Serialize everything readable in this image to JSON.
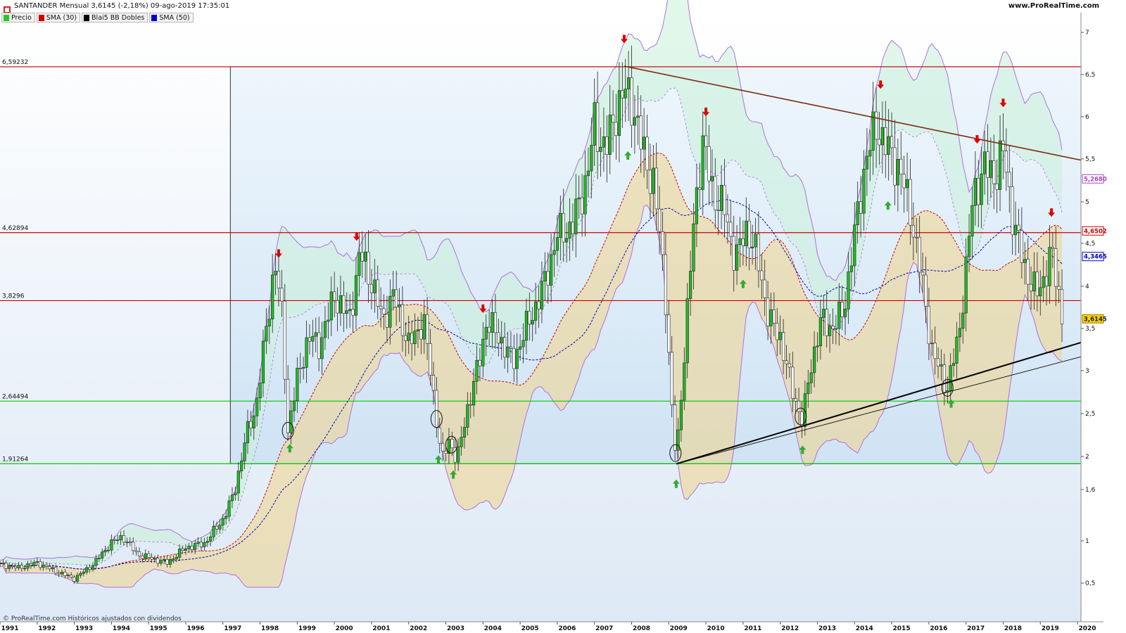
{
  "header": {
    "title": "SANTANDER Mensual 3,6145 (-2,18%) 09-ago-2019 17:35:01",
    "site": "www.ProRealTime.com"
  },
  "legend": [
    {
      "label": "Precio",
      "color": "#22cc22"
    },
    {
      "label": "SMA (30)",
      "color": "#cc0000"
    },
    {
      "label": "Blai5 BB Dobles",
      "color": "#000000"
    },
    {
      "label": "SMA (50)",
      "color": "#0000cc"
    }
  ],
  "footer": {
    "text": "© ProRealTime.com Históricos ajustados con dividendos"
  },
  "colors": {
    "up": "#22bb22",
    "down": "#ffffff",
    "sma30": "#cc0000",
    "sma50": "#0000aa",
    "bands": "#b070e0",
    "resistance": "#cc0000",
    "support": "#00cc00",
    "trend_down": "#7a2a10",
    "trend_up": "#000000",
    "arrow_down": "#dd0000",
    "arrow_up": "#33aa33"
  },
  "chart_data": {
    "type": "candlestick",
    "x_ticks": [
      "1991",
      "1992",
      "1993",
      "1994",
      "1995",
      "1996",
      "1997",
      "1998",
      "1999",
      "2000",
      "2001",
      "2002",
      "2003",
      "2004",
      "2005",
      "2006",
      "2007",
      "2008",
      "2009",
      "2010",
      "2011",
      "2012",
      "2013",
      "2014",
      "2015",
      "2016",
      "2017",
      "2018",
      "2019",
      "2020"
    ],
    "y_ticks": [
      {
        "value": 0.5,
        "label": "0,5"
      },
      {
        "value": 1,
        "label": "1"
      },
      {
        "value": 1.6,
        "label": "1,6"
      },
      {
        "value": 2,
        "label": "2"
      },
      {
        "value": 2.5,
        "label": "2,5"
      },
      {
        "value": 3,
        "label": "3"
      },
      {
        "value": 3.5,
        "label": "3,5"
      },
      {
        "value": 4,
        "label": "4"
      },
      {
        "value": 4.5,
        "label": "4,5"
      },
      {
        "value": 5,
        "label": "5"
      },
      {
        "value": 5.5,
        "label": "5,5"
      },
      {
        "value": 6,
        "label": "6"
      },
      {
        "value": 6.5,
        "label": "6,5"
      },
      {
        "value": 7,
        "label": "7"
      }
    ],
    "levels": [
      {
        "value": 6.59232,
        "label": "6,59232",
        "kind": "resistance"
      },
      {
        "value": 4.62894,
        "label": "4,62894",
        "kind": "resistance"
      },
      {
        "value": 3.8296,
        "label": "3,8296",
        "kind": "resistance"
      },
      {
        "value": 2.64494,
        "label": "2,64494",
        "kind": "support"
      },
      {
        "value": 1.91264,
        "label": "1,91264",
        "kind": "support"
      }
    ],
    "price_tags": [
      {
        "value": 5.268,
        "label": "5,2680",
        "color": "#aa44cc"
      },
      {
        "value": 4.6502,
        "label": "4,6502",
        "color": "#cc0000"
      },
      {
        "value": 4.3465,
        "label": "4,3465",
        "color": "#0000cc"
      },
      {
        "value": 3.6145,
        "label": "3,6145",
        "color": "#aa7700",
        "filled": true
      }
    ],
    "close_path": [
      [
        1991.0,
        0.72
      ],
      [
        1991.5,
        0.68
      ],
      [
        1992.0,
        0.74
      ],
      [
        1992.5,
        0.64
      ],
      [
        1993.0,
        0.55
      ],
      [
        1993.5,
        0.72
      ],
      [
        1994.0,
        0.98
      ],
      [
        1994.3,
        1.05
      ],
      [
        1994.7,
        0.84
      ],
      [
        1995.0,
        0.8
      ],
      [
        1995.5,
        0.74
      ],
      [
        1996.0,
        0.92
      ],
      [
        1996.5,
        0.97
      ],
      [
        1997.0,
        1.25
      ],
      [
        1997.3,
        1.55
      ],
      [
        1997.6,
        2.2
      ],
      [
        1997.9,
        2.6
      ],
      [
        1998.2,
        3.6
      ],
      [
        1998.4,
        4.3
      ],
      [
        1998.6,
        3.6
      ],
      [
        1998.75,
        2.3
      ],
      [
        1999.0,
        2.9
      ],
      [
        1999.3,
        3.4
      ],
      [
        1999.6,
        3.3
      ],
      [
        2000.0,
        3.9
      ],
      [
        2000.4,
        3.6
      ],
      [
        2000.7,
        4.4
      ],
      [
        2001.0,
        4.05
      ],
      [
        2001.3,
        3.6
      ],
      [
        2001.6,
        3.9
      ],
      [
        2002.0,
        3.3
      ],
      [
        2002.4,
        3.6
      ],
      [
        2002.7,
        2.6
      ],
      [
        2002.9,
        1.95
      ],
      [
        2003.1,
        2.2
      ],
      [
        2003.3,
        1.95
      ],
      [
        2003.6,
        2.6
      ],
      [
        2003.9,
        3.1
      ],
      [
        2004.1,
        3.6
      ],
      [
        2004.5,
        3.35
      ],
      [
        2004.8,
        3.1
      ],
      [
        2005.2,
        3.55
      ],
      [
        2005.6,
        3.95
      ],
      [
        2006.0,
        4.6
      ],
      [
        2006.4,
        4.7
      ],
      [
        2006.8,
        5.3
      ],
      [
        2007.0,
        5.9
      ],
      [
        2007.3,
        5.6
      ],
      [
        2007.6,
        6.1
      ],
      [
        2007.8,
        6.3
      ],
      [
        2008.0,
        6.2
      ],
      [
        2008.3,
        5.6
      ],
      [
        2008.6,
        5.2
      ],
      [
        2008.9,
        4.0
      ],
      [
        2009.1,
        2.4
      ],
      [
        2009.2,
        1.95
      ],
      [
        2009.45,
        3.4
      ],
      [
        2009.7,
        4.9
      ],
      [
        2009.9,
        5.7
      ],
      [
        2010.2,
        5.1
      ],
      [
        2010.5,
        4.9
      ],
      [
        2010.8,
        4.3
      ],
      [
        2011.1,
        4.7
      ],
      [
        2011.4,
        4.3
      ],
      [
        2011.7,
        3.6
      ],
      [
        2012.0,
        3.4
      ],
      [
        2012.3,
        2.8
      ],
      [
        2012.6,
        2.4
      ],
      [
        2012.8,
        3.0
      ],
      [
        2013.1,
        3.6
      ],
      [
        2013.4,
        3.5
      ],
      [
        2013.7,
        3.7
      ],
      [
        2014.0,
        4.6
      ],
      [
        2014.3,
        5.5
      ],
      [
        2014.6,
        5.9
      ],
      [
        2014.9,
        5.6
      ],
      [
        2015.2,
        5.4
      ],
      [
        2015.5,
        4.9
      ],
      [
        2015.8,
        4.1
      ],
      [
        2016.1,
        3.2
      ],
      [
        2016.5,
        2.8
      ],
      [
        2016.8,
        3.4
      ],
      [
        2017.0,
        4.2
      ],
      [
        2017.2,
        5.1
      ],
      [
        2017.5,
        5.4
      ],
      [
        2017.8,
        5.3
      ],
      [
        2018.0,
        5.6
      ],
      [
        2018.3,
        4.7
      ],
      [
        2018.6,
        4.2
      ],
      [
        2018.9,
        3.9
      ],
      [
        2019.1,
        4.1
      ],
      [
        2019.3,
        4.4
      ],
      [
        2019.5,
        3.9
      ],
      [
        2019.6,
        3.61
      ]
    ],
    "trendlines": [
      {
        "kind": "down",
        "from": [
          2007.8,
          6.6
        ],
        "to": [
          2020.5,
          5.45
        ]
      },
      {
        "kind": "up",
        "from": [
          2009.2,
          1.91
        ],
        "to": [
          2020.6,
          3.4
        ]
      },
      {
        "kind": "up-thin",
        "from": [
          2009.2,
          1.91
        ],
        "to": [
          2020.4,
          3.2
        ]
      }
    ],
    "arrows_down": [
      1998.5,
      2000.6,
      2004.0,
      2007.8,
      2010.0,
      2014.7,
      2017.3,
      2018.0,
      2019.3
    ],
    "arrows_up": [
      1998.8,
      2002.8,
      2003.2,
      2007.9,
      2009.2,
      2011.0,
      2012.6,
      2014.9,
      2016.6
    ],
    "circles": [
      1998.75,
      2002.75,
      2003.15,
      2009.18,
      2012.55,
      2016.5
    ],
    "box": {
      "x0": 1997.2,
      "x1": 2020.4,
      "y0": 1.91264,
      "y1": 6.59232
    },
    "last": {
      "x": 2019.6,
      "value": 3.6145
    }
  }
}
